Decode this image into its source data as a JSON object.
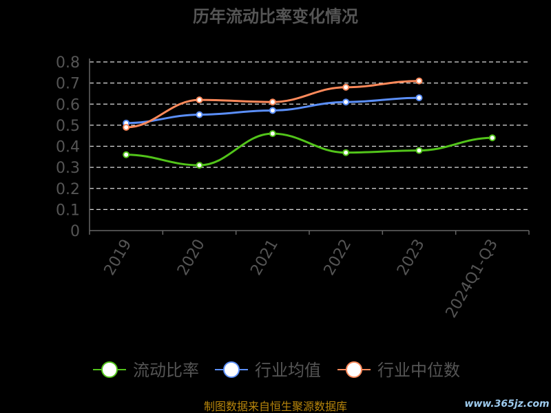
{
  "chart_data": {
    "type": "line",
    "title": "历年流动比率变化情况",
    "categories": [
      "2019",
      "2020",
      "2021",
      "2022",
      "2023",
      "2024Q1-Q3"
    ],
    "ylim": [
      0,
      0.8
    ],
    "yticks": [
      "0",
      "0.1",
      "0.2",
      "0.3",
      "0.4",
      "0.5",
      "0.6",
      "0.7",
      "0.8"
    ],
    "grid": true,
    "legend_position": "bottom",
    "series": [
      {
        "name": "流动比率",
        "color": "#52c41a",
        "values": [
          0.36,
          0.31,
          0.46,
          0.37,
          0.38,
          0.44
        ]
      },
      {
        "name": "行业均值",
        "color": "#5b8ff9",
        "values": [
          0.51,
          0.55,
          0.57,
          0.61,
          0.63,
          null
        ]
      },
      {
        "name": "行业中位数",
        "color": "#ff8a5b",
        "values": [
          0.49,
          0.62,
          0.61,
          0.68,
          0.71,
          null
        ]
      }
    ]
  },
  "footer": {
    "source": "制图数据来自恒生聚源数据库",
    "watermark": "www.365jz.com"
  },
  "colors": {
    "background": "#000000",
    "axis": "#666666",
    "grid": "#dddddd",
    "text": "#555555",
    "source": "#b8860b"
  }
}
